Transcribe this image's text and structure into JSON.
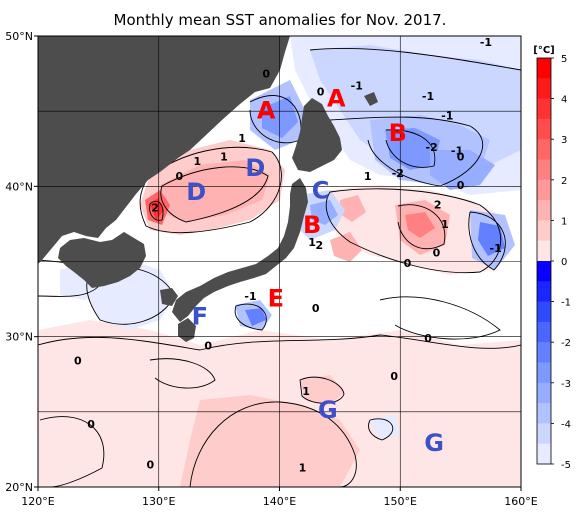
{
  "chart_data": {
    "type": "heatmap",
    "title": "Monthly mean SST anomalies for Nov. 2017.",
    "x_ticks": [
      "120°E",
      "130°E",
      "140°E",
      "150°E",
      "160°E"
    ],
    "x_tick_values": [
      120,
      130,
      140,
      150,
      160
    ],
    "y_ticks": [
      "50°N",
      "40°N",
      "30°N",
      "20°N"
    ],
    "y_tick_values": [
      50,
      40,
      30,
      20
    ],
    "xlim": [
      120,
      160
    ],
    "ylim": [
      20,
      50
    ],
    "grid": true,
    "colorbar": {
      "unit": "[°C]",
      "ticks": [
        "5",
        "4",
        "3",
        "2",
        "1",
        "0",
        "-1",
        "-2",
        "-3",
        "-4",
        "-5"
      ],
      "tick_values": [
        5,
        4,
        3,
        2,
        1,
        0,
        -1,
        -2,
        -3,
        -4,
        -5
      ],
      "range": [
        -5,
        5
      ],
      "step": 0.5,
      "colors": {
        "neg": [
          "#0a00ff",
          "#1a26ff",
          "#2f49ff",
          "#4a66ff",
          "#6381ff",
          "#7d98ff",
          "#97adff",
          "#b2c2ff",
          "#ccd7ff",
          "#e6ebff"
        ],
        "pos": [
          "#ffe6e6",
          "#ffcccc",
          "#ffb2b2",
          "#ff9999",
          "#ff8080",
          "#ff6666",
          "#ff4d4d",
          "#ff3333",
          "#ff1a1a",
          "#ff0000"
        ]
      }
    },
    "contour_labels": [
      {
        "text": "0",
        "lon": 138.9,
        "lat": 47.5
      },
      {
        "text": "0",
        "lon": 143.4,
        "lat": 46.3
      },
      {
        "text": "-1",
        "lon": 146.4,
        "lat": 46.7
      },
      {
        "text": "-1",
        "lon": 157.1,
        "lat": 49.6
      },
      {
        "text": "-1",
        "lon": 152.3,
        "lat": 46.0
      },
      {
        "text": "-1",
        "lon": 153.9,
        "lat": 44.7
      },
      {
        "text": "-2",
        "lon": 152.6,
        "lat": 42.6
      },
      {
        "text": "-1",
        "lon": 154.7,
        "lat": 42.4
      },
      {
        "text": "0",
        "lon": 155.0,
        "lat": 42.0
      },
      {
        "text": "1",
        "lon": 147.3,
        "lat": 40.7
      },
      {
        "text": "-2",
        "lon": 149.8,
        "lat": 40.9
      },
      {
        "text": "0",
        "lon": 155.0,
        "lat": 40.1
      },
      {
        "text": "1",
        "lon": 135.4,
        "lat": 42.0
      },
      {
        "text": "1",
        "lon": 136.9,
        "lat": 43.2
      },
      {
        "text": "1",
        "lon": 133.2,
        "lat": 41.7
      },
      {
        "text": "0",
        "lon": 131.7,
        "lat": 40.7
      },
      {
        "text": "2",
        "lon": 129.7,
        "lat": 38.6
      },
      {
        "text": "1",
        "lon": 142.7,
        "lat": 36.3
      },
      {
        "text": "2",
        "lon": 143.3,
        "lat": 36.1
      },
      {
        "text": "2",
        "lon": 153.1,
        "lat": 38.8
      },
      {
        "text": "1",
        "lon": 153.7,
        "lat": 37.5
      },
      {
        "text": "0",
        "lon": 153.0,
        "lat": 35.6
      },
      {
        "text": "-1",
        "lon": 157.9,
        "lat": 35.9
      },
      {
        "text": "0",
        "lon": 150.6,
        "lat": 34.9
      },
      {
        "text": "-1",
        "lon": 137.6,
        "lat": 32.7
      },
      {
        "text": "0",
        "lon": 143.0,
        "lat": 31.9
      },
      {
        "text": "0",
        "lon": 152.3,
        "lat": 29.9
      },
      {
        "text": "0",
        "lon": 134.1,
        "lat": 29.4
      },
      {
        "text": "0",
        "lon": 123.3,
        "lat": 28.4
      },
      {
        "text": "0",
        "lon": 149.5,
        "lat": 27.4
      },
      {
        "text": "1",
        "lon": 142.2,
        "lat": 26.4
      },
      {
        "text": "0",
        "lon": 124.4,
        "lat": 24.2
      },
      {
        "text": "0",
        "lon": 129.3,
        "lat": 21.5
      },
      {
        "text": "1",
        "lon": 141.9,
        "lat": 21.3
      }
    ],
    "region_labels": [
      {
        "text": "A",
        "lon": 138.9,
        "lat": 45.1,
        "color": "#ff0000"
      },
      {
        "text": "A",
        "lon": 144.7,
        "lat": 45.9,
        "color": "#ff0000"
      },
      {
        "text": "B",
        "lon": 149.8,
        "lat": 43.6,
        "color": "#ff0000"
      },
      {
        "text": "B",
        "lon": 142.7,
        "lat": 37.5,
        "color": "#ff0000"
      },
      {
        "text": "C",
        "lon": 143.4,
        "lat": 39.8,
        "color": "#3c50c8"
      },
      {
        "text": "D",
        "lon": 133.1,
        "lat": 39.7,
        "color": "#3c50c8"
      },
      {
        "text": "D",
        "lon": 138.0,
        "lat": 41.3,
        "color": "#3c50c8"
      },
      {
        "text": "E",
        "lon": 139.7,
        "lat": 32.6,
        "color": "#ff0000"
      },
      {
        "text": "F",
        "lon": 133.4,
        "lat": 31.4,
        "color": "#3c50c8"
      },
      {
        "text": "G",
        "lon": 144.0,
        "lat": 25.2,
        "color": "#3c50c8"
      },
      {
        "text": "G",
        "lon": 152.8,
        "lat": 23.0,
        "color": "#3c50c8"
      }
    ]
  }
}
